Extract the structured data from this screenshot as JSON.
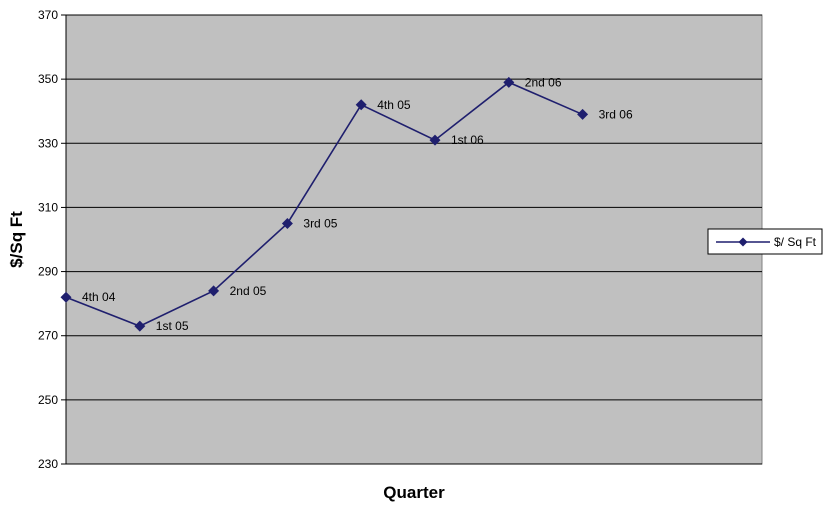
{
  "chart_data": {
    "type": "line",
    "title": "",
    "xlabel": "Quarter",
    "ylabel": "$/Sq Ft",
    "ylim": [
      230,
      370
    ],
    "yticks": [
      230,
      250,
      270,
      290,
      310,
      330,
      350,
      370
    ],
    "grid": true,
    "legend_position": "right",
    "plot_background": "#c0c0c0",
    "series_color": "#1f1f6e",
    "x": [
      "4th 04",
      "1st 05",
      "2nd 05",
      "3rd 05",
      "4th 05",
      "1st 06",
      "2nd 06",
      "3rd 06"
    ],
    "series": [
      {
        "name": "$/ Sq Ft",
        "values": [
          282,
          273,
          284,
          305,
          342,
          331,
          349,
          339
        ]
      }
    ],
    "point_labels": [
      "4th 04",
      "1st 05",
      "2nd 05",
      "3rd 05",
      "4th 05",
      "1st 06",
      "2nd 06",
      "3rd 06"
    ]
  }
}
